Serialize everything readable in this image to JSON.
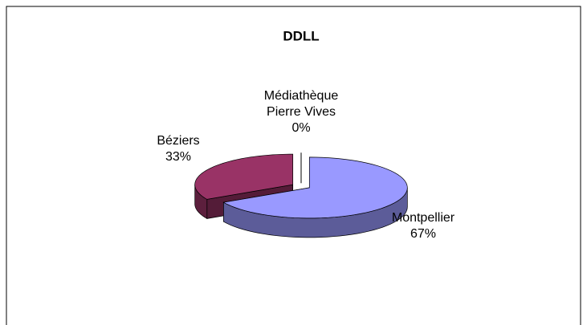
{
  "chart_data": {
    "type": "pie",
    "title": "DDLL",
    "categories": [
      "Montpellier",
      "Béziers",
      "Médiathèque Pierre Vives"
    ],
    "values": [
      67,
      33,
      0
    ],
    "value_labels": [
      "67%",
      "33%",
      "0%"
    ],
    "colors": [
      "#9999ff",
      "#993366",
      "#ffffcc"
    ]
  }
}
